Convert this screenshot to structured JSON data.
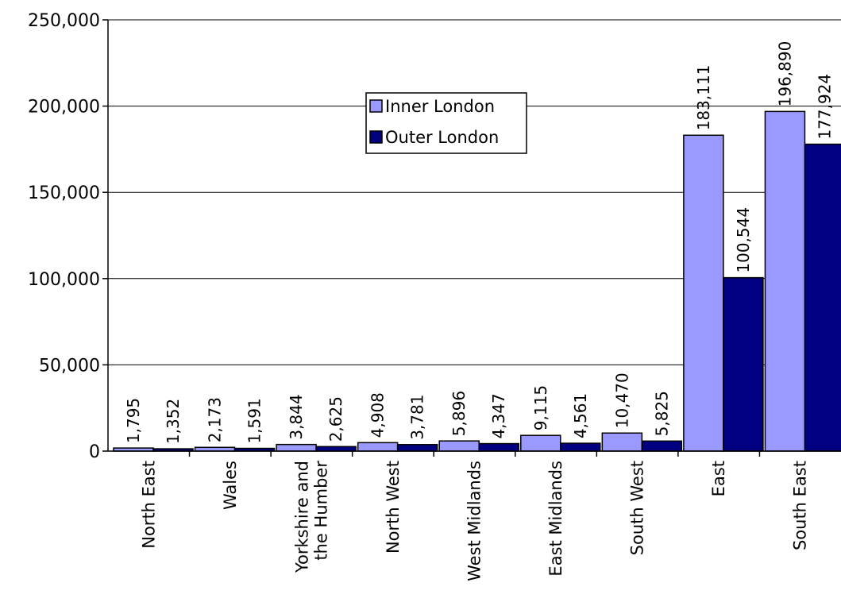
{
  "chart_data": {
    "type": "bar",
    "title": "",
    "xlabel": "",
    "ylabel": "",
    "ylim": [
      0,
      250000
    ],
    "yticks": [
      0,
      50000,
      100000,
      150000,
      200000,
      250000
    ],
    "ytick_labels": [
      "0",
      "50,000",
      "100,000",
      "150,000",
      "200,000",
      "250,000"
    ],
    "grid": true,
    "legend_position": "upper-center",
    "categories": [
      [
        "North East"
      ],
      [
        "Wales"
      ],
      [
        "Yorkshire and",
        "the Humber"
      ],
      [
        "North West"
      ],
      [
        "West Midlands"
      ],
      [
        "East Midlands"
      ],
      [
        "South West"
      ],
      [
        "East"
      ],
      [
        "South East"
      ]
    ],
    "series": [
      {
        "name": "Inner London",
        "color": "#9999ff",
        "values": [
          1795,
          2173,
          3844,
          4908,
          5896,
          9115,
          10470,
          183111,
          196890
        ],
        "labels": [
          "1,795",
          "2,173",
          "3,844",
          "4,908",
          "5,896",
          "9,115",
          "10,470",
          "183,111",
          "196,890"
        ]
      },
      {
        "name": "Outer London",
        "color": "#000080",
        "values": [
          1352,
          1591,
          2625,
          3781,
          4347,
          4561,
          5825,
          100544,
          177924
        ],
        "labels": [
          "1,352",
          "1,591",
          "2,625",
          "3,781",
          "4,347",
          "4,561",
          "5,825",
          "100,544",
          "177,924"
        ]
      }
    ]
  }
}
